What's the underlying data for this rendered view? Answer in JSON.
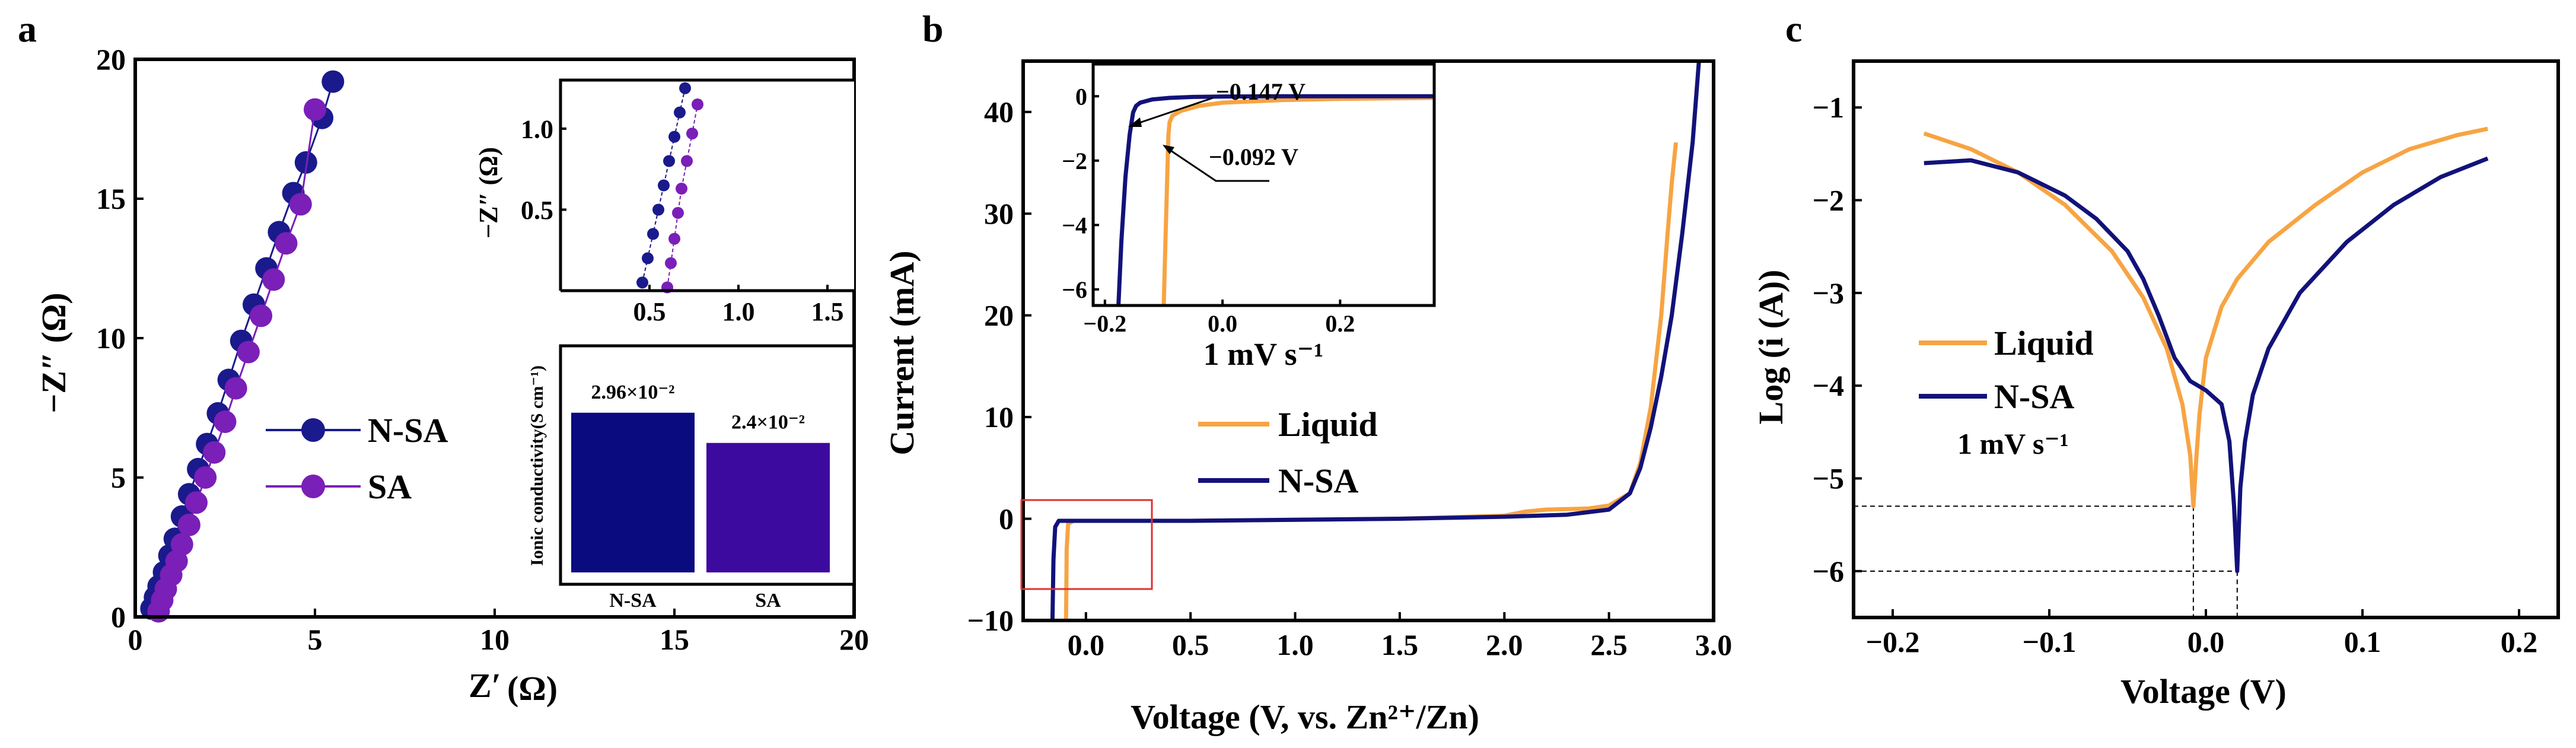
{
  "colors": {
    "nsa_blue": "#1a1a8c",
    "sa_purple": "#7a1fb8",
    "liquid_orange": "#f7a443",
    "nsa_bar": "#0b0b80",
    "sa_bar": "#3d0aa0",
    "nsa_line": "#12127a",
    "highlight_box": "#e03030"
  },
  "panels": {
    "a": {
      "letter": "a",
      "xlabel_main": "Z′",
      "xlabel_unit": "(Ω)",
      "ylabel": "−Z″ (Ω)",
      "legend": [
        "N-SA",
        "SA"
      ],
      "inset_nyquist": {
        "ylabel": "−Z″ (Ω)",
        "xticks": [
          "0.5",
          "1.0",
          "1.5"
        ],
        "yticks": [
          "0.5",
          "1.0"
        ]
      },
      "inset_bar": {
        "ylabel": "Ionic conductivity(S cm⁻¹)",
        "categories": [
          "N-SA",
          "SA"
        ],
        "value_labels": [
          "2.96×10⁻²",
          "2.4×10⁻²"
        ]
      }
    },
    "b": {
      "letter": "b",
      "xlabel": "Voltage (V, vs. Zn²⁺/Zn)",
      "ylabel": "Current (mA)",
      "legend": [
        "Liquid",
        "N-SA"
      ],
      "inset": {
        "caption": "1 mV s⁻¹",
        "ann1": "−0.147 V",
        "ann2": "−0.092 V",
        "xticks": [
          "−0.2",
          "0.0",
          "0.2"
        ],
        "yticks": [
          "0",
          "−2",
          "−4",
          "−6"
        ]
      }
    },
    "c": {
      "letter": "c",
      "xlabel": "Voltage (V)",
      "ylabel": "Log (i (A))",
      "legend": [
        "Liquid",
        "N-SA"
      ],
      "rate_label": "1 mV s⁻¹"
    }
  },
  "chart_data": [
    {
      "id": "a",
      "type": "scatter",
      "title": "",
      "xlabel": "Z′ (Ω)",
      "ylabel": "−Z″ (Ω)",
      "xlim": [
        0,
        20
      ],
      "ylim": [
        0,
        20
      ],
      "xticks": [
        0,
        5,
        10,
        15,
        20
      ],
      "yticks": [
        0,
        5,
        10,
        15,
        20
      ],
      "legend_position": "center-right",
      "series": [
        {
          "name": "N-SA",
          "x": [
            0.45,
            0.55,
            0.65,
            0.8,
            0.95,
            1.1,
            1.3,
            1.5,
            1.75,
            2.0,
            2.3,
            2.6,
            2.95,
            3.3,
            3.65,
            4.0,
            4.4,
            4.75,
            5.2,
            5.5
          ],
          "y": [
            0.3,
            0.7,
            1.1,
            1.6,
            2.2,
            2.8,
            3.6,
            4.4,
            5.3,
            6.2,
            7.3,
            8.5,
            9.9,
            11.2,
            12.5,
            13.8,
            15.2,
            16.3,
            17.9,
            19.2
          ]
        },
        {
          "name": "SA",
          "x": [
            0.65,
            0.75,
            0.85,
            1.0,
            1.15,
            1.3,
            1.5,
            1.7,
            1.95,
            2.2,
            2.5,
            2.8,
            3.15,
            3.5,
            3.85,
            4.2,
            4.6,
            5.0
          ],
          "y": [
            0.2,
            0.6,
            1.0,
            1.5,
            2.0,
            2.6,
            3.3,
            4.1,
            5.0,
            5.9,
            7.0,
            8.2,
            9.5,
            10.8,
            12.1,
            13.4,
            14.8,
            18.2
          ]
        }
      ],
      "insets": [
        {
          "type": "scatter",
          "ylabel": "−Z″ (Ω)",
          "xlim": [
            0,
            1.65
          ],
          "ylim": [
            0,
            1.3
          ],
          "xticks": [
            0.5,
            1.0,
            1.5
          ],
          "yticks": [
            0.5,
            1.0
          ],
          "series": [
            {
              "name": "N-SA",
              "x": [
                0.46,
                0.49,
                0.52,
                0.55,
                0.58,
                0.61,
                0.64,
                0.67,
                0.7
              ],
              "y": [
                0.05,
                0.2,
                0.35,
                0.5,
                0.65,
                0.8,
                0.95,
                1.1,
                1.25
              ]
            },
            {
              "name": "SA",
              "x": [
                0.6,
                0.62,
                0.64,
                0.66,
                0.68,
                0.71,
                0.74,
                0.77
              ],
              "y": [
                0.02,
                0.17,
                0.32,
                0.48,
                0.63,
                0.8,
                0.97,
                1.15
              ]
            }
          ]
        },
        {
          "type": "bar",
          "ylabel": "Ionic conductivity(S cm⁻¹)",
          "categories": [
            "N-SA",
            "SA"
          ],
          "values": [
            0.0296,
            0.024
          ],
          "value_labels": [
            "2.96×10⁻²",
            "2.4×10⁻²"
          ],
          "ylim": [
            0,
            0.042
          ]
        }
      ]
    },
    {
      "id": "b",
      "type": "line",
      "title": "",
      "xlabel": "Voltage (V, vs. Zn²⁺/Zn)",
      "ylabel": "Current (mA)",
      "xlim": [
        -0.3,
        3.0
      ],
      "ylim": [
        -10,
        45
      ],
      "xticks": [
        0.0,
        0.5,
        1.0,
        1.5,
        2.0,
        2.5,
        3.0
      ],
      "xtick_labels": [
        "0.0",
        "0.5",
        "1.0",
        "1.5",
        "2.0",
        "2.5",
        "3.0"
      ],
      "yticks": [
        -10,
        0,
        10,
        20,
        30,
        40
      ],
      "legend_position": "center",
      "series": [
        {
          "name": "Liquid",
          "x": [
            -0.095,
            -0.092,
            -0.085,
            -0.06,
            0.0,
            0.5,
            1.0,
            1.5,
            2.0,
            2.1,
            2.2,
            2.4,
            2.5,
            2.6,
            2.65,
            2.7,
            2.75,
            2.78,
            2.8,
            2.82
          ],
          "y": [
            -10,
            -3,
            -0.5,
            -0.2,
            -0.2,
            -0.2,
            -0.1,
            0.0,
            0.3,
            0.7,
            0.9,
            1.0,
            1.3,
            2.5,
            5.5,
            11,
            20,
            28,
            33,
            37
          ]
        },
        {
          "name": "N-SA",
          "x": [
            -0.16,
            -0.155,
            -0.147,
            -0.13,
            -0.1,
            0.0,
            0.5,
            1.0,
            1.5,
            2.0,
            2.3,
            2.5,
            2.6,
            2.65,
            2.7,
            2.75,
            2.8,
            2.85,
            2.9,
            2.93
          ],
          "y": [
            -10,
            -4,
            -0.8,
            -0.2,
            -0.2,
            -0.2,
            -0.2,
            -0.1,
            0.0,
            0.2,
            0.4,
            0.9,
            2.5,
            5,
            9,
            14,
            20,
            28,
            37,
            45
          ]
        }
      ],
      "annotations": [
        {
          "text": "highlight box",
          "x_range": [
            -0.2,
            0.38
          ],
          "y_range": [
            -7,
            2
          ]
        }
      ],
      "inset": {
        "type": "line",
        "xlabel": "1 mV s⁻¹",
        "xlim": [
          -0.22,
          0.36
        ],
        "ylim": [
          -6.5,
          1.0
        ],
        "xticks": [
          -0.2,
          0.0,
          0.2
        ],
        "yticks": [
          0,
          -2,
          -4,
          -6
        ],
        "series": [
          {
            "name": "Liquid",
            "x": [
              -0.1,
              -0.097,
              -0.094,
              -0.092,
              -0.09,
              -0.085,
              -0.07,
              -0.04,
              0.0,
              0.1,
              0.2,
              0.36
            ],
            "y": [
              -6.5,
              -4.5,
              -2.5,
              -1.2,
              -0.8,
              -0.6,
              -0.45,
              -0.3,
              -0.2,
              -0.12,
              -0.08,
              -0.05
            ]
          },
          {
            "name": "N-SA",
            "x": [
              -0.177,
              -0.172,
              -0.165,
              -0.158,
              -0.152,
              -0.147,
              -0.14,
              -0.12,
              -0.09,
              -0.05,
              0.0,
              0.1,
              0.2,
              0.36
            ],
            "y": [
              -6.5,
              -4.5,
              -2.5,
              -1.2,
              -0.5,
              -0.3,
              -0.2,
              -0.1,
              -0.05,
              -0.02,
              -0.01,
              0.0,
              0.0,
              0.0
            ]
          }
        ],
        "annotations": [
          {
            "text": "−0.147 V",
            "x": -0.147,
            "y": -0.3
          },
          {
            "text": "−0.092 V",
            "x": -0.092,
            "y": -1.2
          }
        ]
      }
    },
    {
      "id": "c",
      "type": "line",
      "title": "",
      "xlabel": "Voltage (V)",
      "ylabel": "Log (i (A))",
      "xlim": [
        -0.225,
        0.225
      ],
      "ylim": [
        -6.5,
        -0.5
      ],
      "xticks": [
        -0.2,
        -0.1,
        0.0,
        0.1,
        0.2
      ],
      "xtick_labels": [
        "−0.2",
        "−0.1",
        "0.0",
        "0.1",
        "0.2"
      ],
      "yticks": [
        -6,
        -5,
        -4,
        -3,
        -2,
        -1
      ],
      "ytick_labels": [
        "−6",
        "−5",
        "−4",
        "−3",
        "−2",
        "−1"
      ],
      "legend_position": "center-left",
      "series": [
        {
          "name": "Liquid",
          "x": [
            -0.18,
            -0.15,
            -0.12,
            -0.09,
            -0.06,
            -0.04,
            -0.025,
            -0.015,
            -0.01,
            -0.008,
            -0.006,
            -0.004,
            0.0,
            0.01,
            0.02,
            0.04,
            0.07,
            0.1,
            0.13,
            0.16,
            0.18
          ],
          "y": [
            -1.28,
            -1.45,
            -1.7,
            -2.05,
            -2.55,
            -3.05,
            -3.6,
            -4.2,
            -4.75,
            -5.3,
            -4.75,
            -4.3,
            -3.7,
            -3.15,
            -2.85,
            -2.45,
            -2.05,
            -1.7,
            -1.45,
            -1.3,
            -1.23
          ]
        },
        {
          "name": "N-SA",
          "x": [
            -0.18,
            -0.15,
            -0.12,
            -0.09,
            -0.07,
            -0.05,
            -0.04,
            -0.03,
            -0.02,
            -0.01,
            0.0,
            0.01,
            0.015,
            0.018,
            0.02,
            0.022,
            0.025,
            0.03,
            0.04,
            0.06,
            0.09,
            0.12,
            0.15,
            0.18
          ],
          "y": [
            -1.6,
            -1.57,
            -1.7,
            -1.95,
            -2.2,
            -2.55,
            -2.85,
            -3.25,
            -3.7,
            -3.95,
            -4.05,
            -4.2,
            -4.6,
            -5.3,
            -6.0,
            -5.1,
            -4.6,
            -4.1,
            -3.6,
            -3.0,
            -2.45,
            -2.05,
            -1.75,
            -1.55
          ]
        }
      ],
      "reference_lines": [
        {
          "x": -0.008,
          "y": -5.3
        },
        {
          "x": 0.02,
          "y": -6.0
        }
      ]
    }
  ]
}
